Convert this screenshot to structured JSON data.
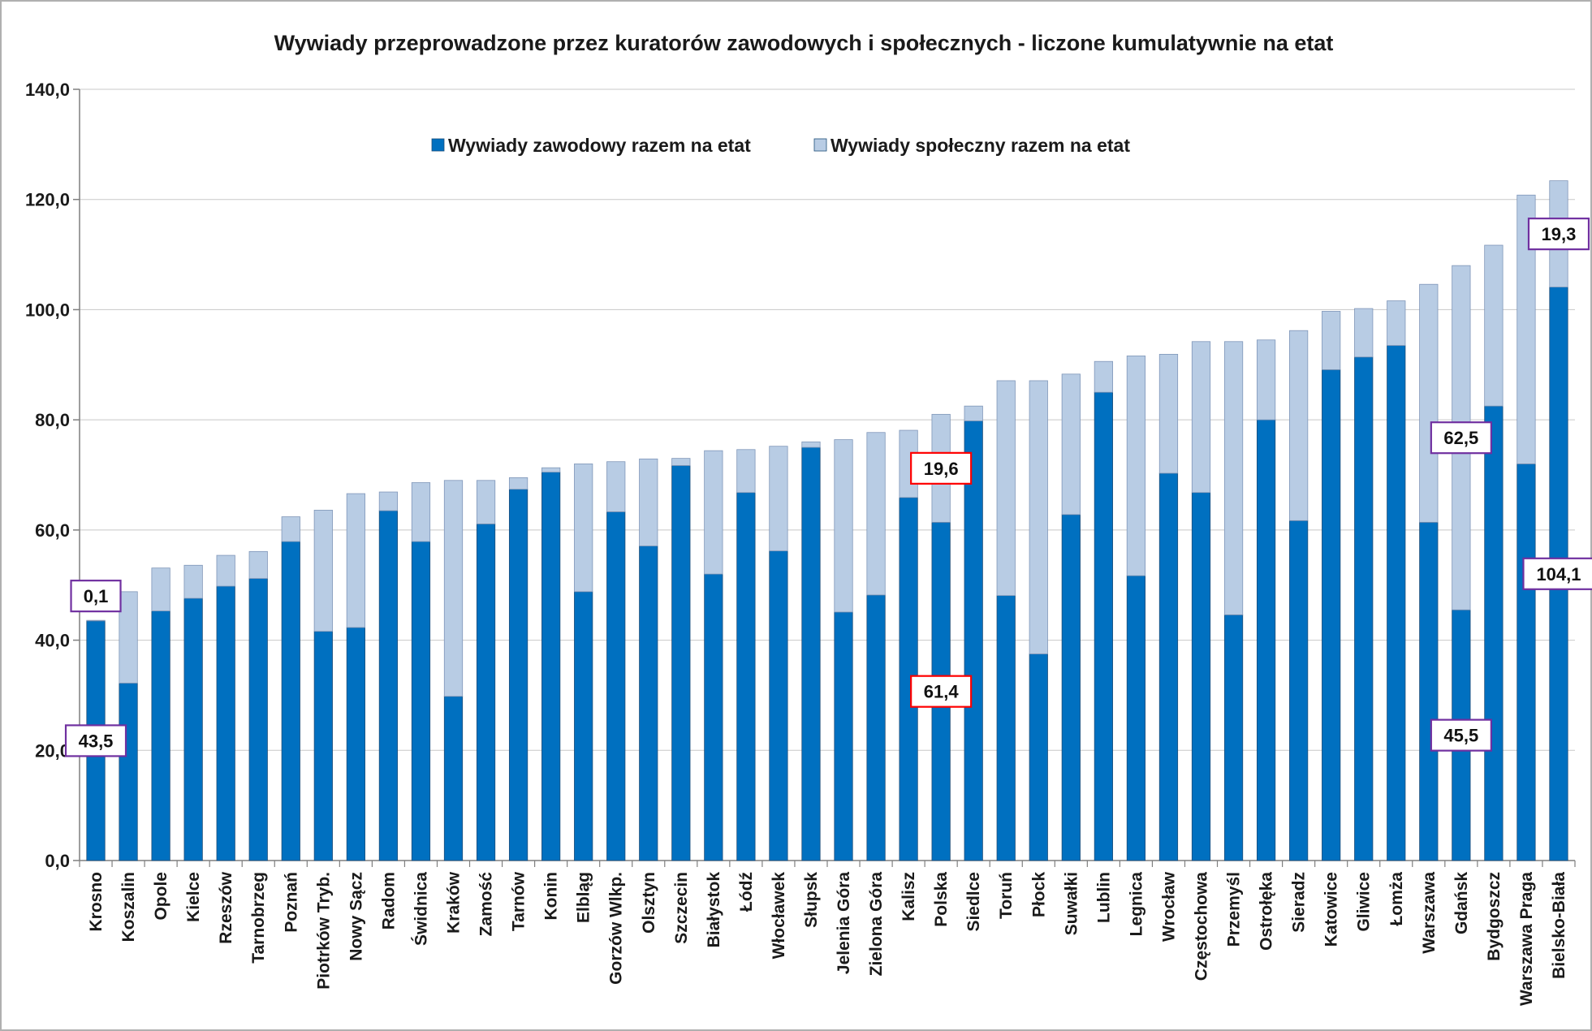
{
  "chart_data": {
    "type": "bar",
    "stacked": true,
    "title": "Wywiady przeprowadzone przez kuratorów zawodowych i społecznych - liczone kumulatywnie na etat",
    "xlabel": "",
    "ylabel": "",
    "ylim": [
      0,
      140
    ],
    "yticks": [
      "0,0",
      "20,0",
      "40,0",
      "60,0",
      "80,0",
      "100,0",
      "120,0",
      "140,0"
    ],
    "grid": true,
    "legend_position": "top-center",
    "categories": [
      "Krosno",
      "Koszalin",
      "Opole",
      "Kielce",
      "Rzeszów",
      "Tarnobrzeg",
      "Poznań",
      "Piotrków Tryb.",
      "Nowy Sącz",
      "Radom",
      "Świdnica",
      "Kraków",
      "Zamość",
      "Tarnów",
      "Konin",
      "Elbląg",
      "Gorzów Wlkp.",
      "Olsztyn",
      "Szczecin",
      "Białystok",
      "Łódź",
      "Włocławek",
      "Słupsk",
      "Jelenia Góra",
      "Zielona Góra",
      "Kalisz",
      "Polska",
      "Siedlce",
      "Toruń",
      "Płock",
      "Suwałki",
      "Lublin",
      "Legnica",
      "Wrocław",
      "Częstochowa",
      "Przemyśl",
      "Ostrołęka",
      "Sieradz",
      "Katowice",
      "Gliwice",
      "Łomża",
      "Warszawa",
      "Gdańsk",
      "Bydgoszcz",
      "Warszawa Praga",
      "Bielsko-Biała"
    ],
    "series": [
      {
        "name": "Wywiady zawodowy razem na etat",
        "color": "#0070c0",
        "values": [
          43.5,
          32.2,
          45.3,
          47.6,
          49.8,
          51.2,
          57.9,
          41.6,
          42.3,
          63.5,
          57.9,
          29.8,
          61.1,
          67.4,
          70.5,
          48.8,
          63.3,
          57.1,
          71.7,
          52.0,
          66.8,
          56.2,
          75.0,
          45.1,
          48.2,
          65.9,
          61.4,
          79.8,
          48.1,
          37.5,
          62.8,
          85.0,
          51.7,
          70.3,
          66.8,
          44.6,
          80.0,
          61.7,
          89.1,
          91.4,
          93.5,
          61.4,
          45.5,
          82.5,
          72.0,
          104.1
        ]
      },
      {
        "name": "Wywiady społeczny razem na etat",
        "color": "#b8cce4",
        "values": [
          0.1,
          16.6,
          7.8,
          6.0,
          5.6,
          4.9,
          4.5,
          22.0,
          24.3,
          3.4,
          10.7,
          39.2,
          7.9,
          2.1,
          0.8,
          23.2,
          9.1,
          15.8,
          1.3,
          22.4,
          7.8,
          19.0,
          1.0,
          31.3,
          29.5,
          12.2,
          19.6,
          2.7,
          39.0,
          49.6,
          25.5,
          5.6,
          39.9,
          21.6,
          27.4,
          49.6,
          14.5,
          34.5,
          10.6,
          8.8,
          8.1,
          43.2,
          62.5,
          29.2,
          48.8,
          19.3
        ]
      }
    ],
    "callouts": [
      {
        "category": "Krosno",
        "series": 0,
        "text": "43,5",
        "border": "#7030a0"
      },
      {
        "category": "Krosno",
        "series": 1,
        "text": "0,1",
        "border": "#7030a0"
      },
      {
        "category": "Polska",
        "series": 0,
        "text": "61,4",
        "border": "#ff0000"
      },
      {
        "category": "Polska",
        "series": 1,
        "text": "19,6",
        "border": "#ff0000"
      },
      {
        "category": "Gdańsk",
        "series": 0,
        "text": "45,5",
        "border": "#7030a0"
      },
      {
        "category": "Gdańsk",
        "series": 1,
        "text": "62,5",
        "border": "#7030a0"
      },
      {
        "category": "Bielsko-Biała",
        "series": 0,
        "text": "104,1",
        "border": "#7030a0"
      },
      {
        "category": "Bielsko-Biała",
        "series": 1,
        "text": "19,3",
        "border": "#7030a0"
      }
    ]
  }
}
